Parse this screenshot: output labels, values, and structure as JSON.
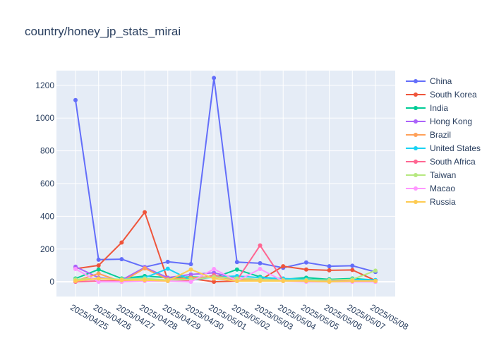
{
  "chart_data": {
    "type": "line",
    "title": "country/honey_jp_stats_mirai",
    "xlabel": "",
    "ylabel": "",
    "x": [
      "2025/04/25",
      "2025/04/26",
      "2025/04/27",
      "2025/04/28",
      "2025/04/29",
      "2025/04/30",
      "2025/05/01",
      "2025/05/02",
      "2025/05/03",
      "2025/05/04",
      "2025/05/05",
      "2025/05/06",
      "2025/05/07",
      "2025/05/08"
    ],
    "ylim": [
      -90,
      1290
    ],
    "yticks": [
      0,
      200,
      400,
      600,
      800,
      1000,
      1200
    ],
    "ytick_labels": [
      "0",
      "200",
      "400",
      "600",
      "800",
      "1000",
      "1200"
    ],
    "grid": true,
    "legend_position": "right",
    "plot_background": "#e5ecf6",
    "series": [
      {
        "name": "China",
        "color": "#636efa",
        "values": [
          1110,
          135,
          138,
          90,
          122,
          108,
          1245,
          120,
          113,
          85,
          118,
          95,
          98,
          60
        ]
      },
      {
        "name": "South Korea",
        "color": "#ef553b",
        "values": [
          80,
          100,
          240,
          425,
          10,
          20,
          0,
          5,
          10,
          95,
          75,
          70,
          72,
          8
        ]
      },
      {
        "name": "India",
        "color": "#00cc96",
        "values": [
          20,
          75,
          20,
          35,
          25,
          30,
          25,
          75,
          30,
          15,
          25,
          15,
          20,
          10
        ]
      },
      {
        "name": "Hong Kong",
        "color": "#ab63fa",
        "values": [
          92,
          25,
          10,
          88,
          25,
          45,
          55,
          20,
          15,
          15,
          10,
          10,
          10,
          5
        ]
      },
      {
        "name": "Brazil",
        "color": "#ffa15a",
        "values": [
          5,
          50,
          0,
          82,
          15,
          25,
          30,
          15,
          10,
          5,
          5,
          5,
          5,
          0
        ]
      },
      {
        "name": "United States",
        "color": "#19d3f3",
        "values": [
          10,
          20,
          15,
          25,
          80,
          10,
          30,
          35,
          25,
          20,
          15,
          10,
          15,
          10
        ]
      },
      {
        "name": "South Africa",
        "color": "#ff6692",
        "values": [
          0,
          5,
          5,
          10,
          5,
          10,
          40,
          10,
          222,
          10,
          5,
          5,
          5,
          5
        ]
      },
      {
        "name": "Taiwan",
        "color": "#b6e880",
        "values": [
          15,
          20,
          15,
          20,
          10,
          15,
          30,
          20,
          15,
          10,
          10,
          10,
          15,
          68
        ]
      },
      {
        "name": "Macao",
        "color": "#ff97ff",
        "values": [
          78,
          0,
          0,
          5,
          5,
          0,
          78,
          5,
          78,
          5,
          0,
          0,
          0,
          0
        ]
      },
      {
        "name": "Russia",
        "color": "#fecb52",
        "values": [
          5,
          20,
          10,
          10,
          5,
          75,
          20,
          5,
          5,
          5,
          5,
          0,
          5,
          5
        ]
      }
    ]
  }
}
